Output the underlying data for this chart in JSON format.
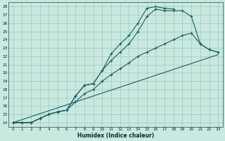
{
  "xlabel": "Humidex (Indice chaleur)",
  "bg_color": "#c8e8e0",
  "grid_color": "#a0c8c0",
  "line_color": "#1a6060",
  "xlim": [
    -0.5,
    23.5
  ],
  "ylim": [
    13.5,
    28.5
  ],
  "xticks": [
    0,
    1,
    2,
    3,
    4,
    5,
    6,
    7,
    8,
    9,
    10,
    11,
    12,
    13,
    14,
    15,
    16,
    17,
    18,
    19,
    20,
    21,
    22,
    23
  ],
  "yticks": [
    14,
    15,
    16,
    17,
    18,
    19,
    20,
    21,
    22,
    23,
    24,
    25,
    26,
    27,
    28
  ],
  "curve1_x": [
    0,
    1,
    2,
    3,
    4,
    5,
    6,
    7,
    8,
    9,
    10,
    11,
    12,
    13,
    14,
    15,
    16,
    17,
    18
  ],
  "curve1_y": [
    14,
    14,
    14,
    14.5,
    15.0,
    15.3,
    15.5,
    17.2,
    18.5,
    18.7,
    20.3,
    22.3,
    23.5,
    24.5,
    26.0,
    27.8,
    28.0,
    27.8,
    27.7
  ],
  "curve2_x": [
    0,
    1,
    2,
    3,
    4,
    5,
    6,
    7,
    8,
    9,
    10,
    11,
    12,
    13,
    14,
    15,
    16,
    17,
    18,
    19,
    20,
    21,
    22,
    23
  ],
  "curve2_y": [
    14,
    14,
    14,
    14.5,
    15.0,
    15.3,
    15.5,
    17.2,
    18.5,
    18.7,
    20.3,
    21.5,
    22.5,
    23.5,
    25.0,
    26.8,
    27.7,
    27.5,
    27.5,
    27.5,
    26.8,
    23.5,
    22.8,
    22.5
  ],
  "curve3_x": [
    0,
    1,
    2,
    3,
    4,
    5,
    6,
    7,
    8,
    9,
    10,
    11,
    12,
    13,
    14,
    15,
    16,
    17,
    18,
    19,
    20,
    21,
    22,
    23
  ],
  "curve3_y": [
    14,
    14,
    14,
    14.5,
    15.0,
    15.3,
    15.5,
    16.5,
    17.5,
    18.0,
    19.0,
    19.8,
    20.5,
    21.2,
    22.0,
    22.5,
    23.0,
    23.5,
    24.0,
    24.5,
    24.8,
    23.5,
    22.8,
    22.5
  ],
  "line_x": [
    0,
    23
  ],
  "line_y": [
    14.0,
    22.2
  ]
}
